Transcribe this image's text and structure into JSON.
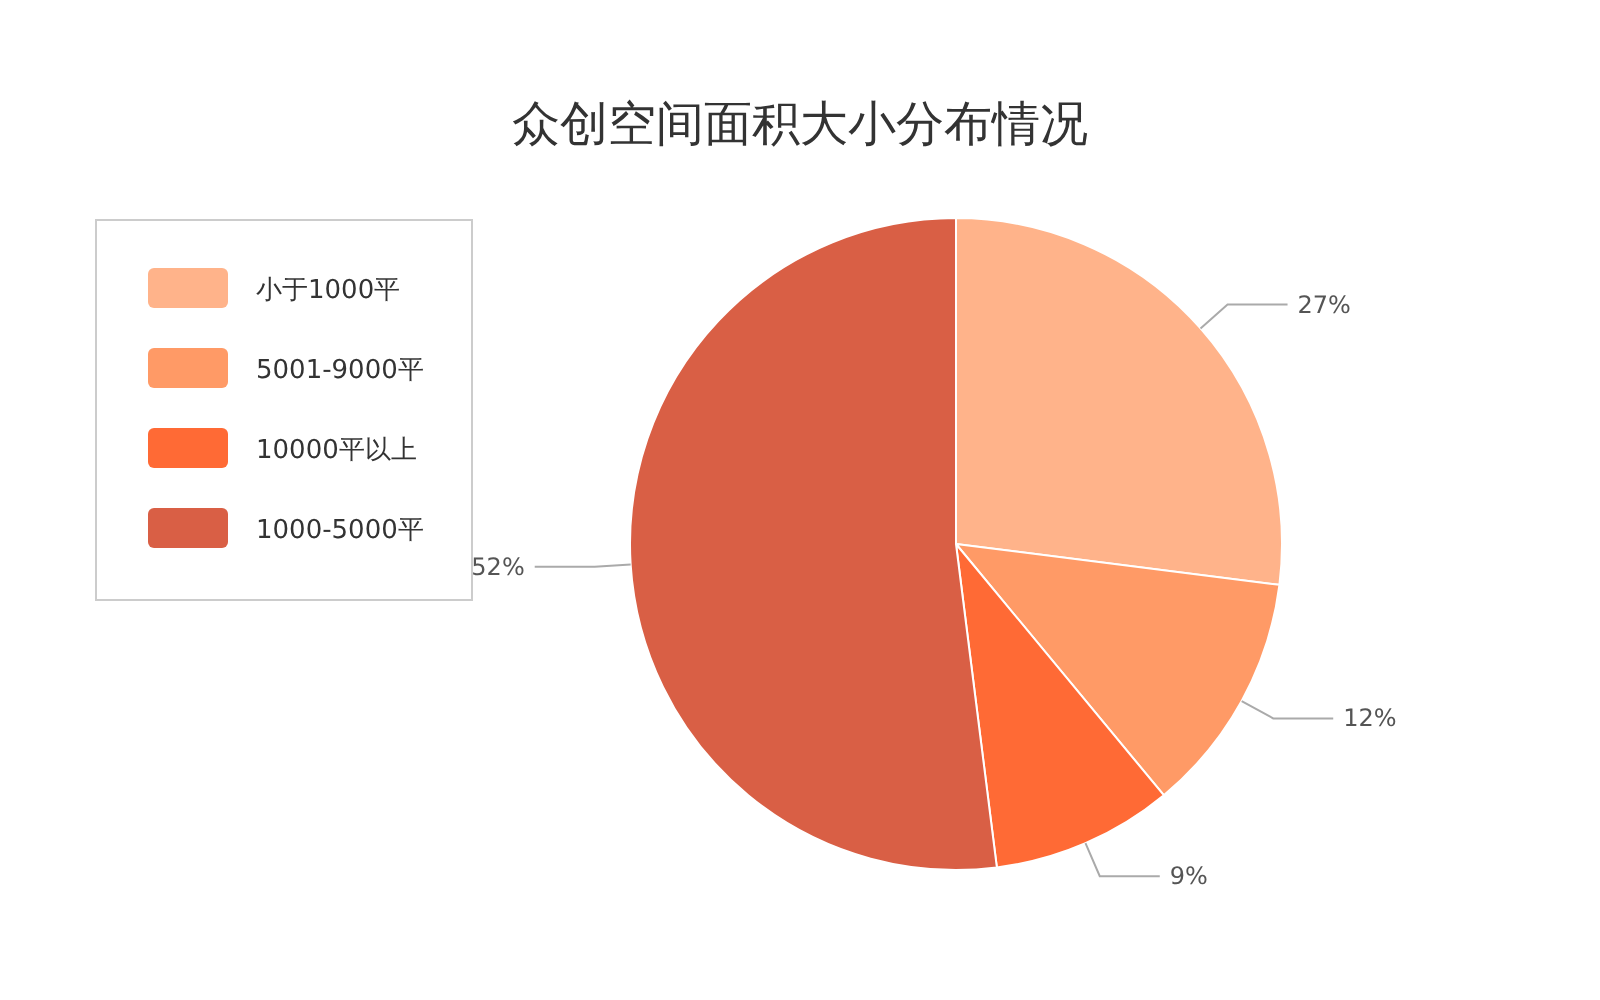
{
  "chart_data": {
    "type": "pie",
    "title": "众创空间面积大小分布情况",
    "categories": [
      "小于1000平",
      "5001-9000平",
      "10000平以上",
      "1000-5000平"
    ],
    "values": [
      27,
      12,
      9,
      52
    ],
    "value_labels": [
      "27%",
      "12%",
      "9%",
      "52%"
    ],
    "colors": [
      "#ffb38a",
      "#ff9a66",
      "#ff6a35",
      "#d95f45"
    ],
    "legend": "left"
  }
}
